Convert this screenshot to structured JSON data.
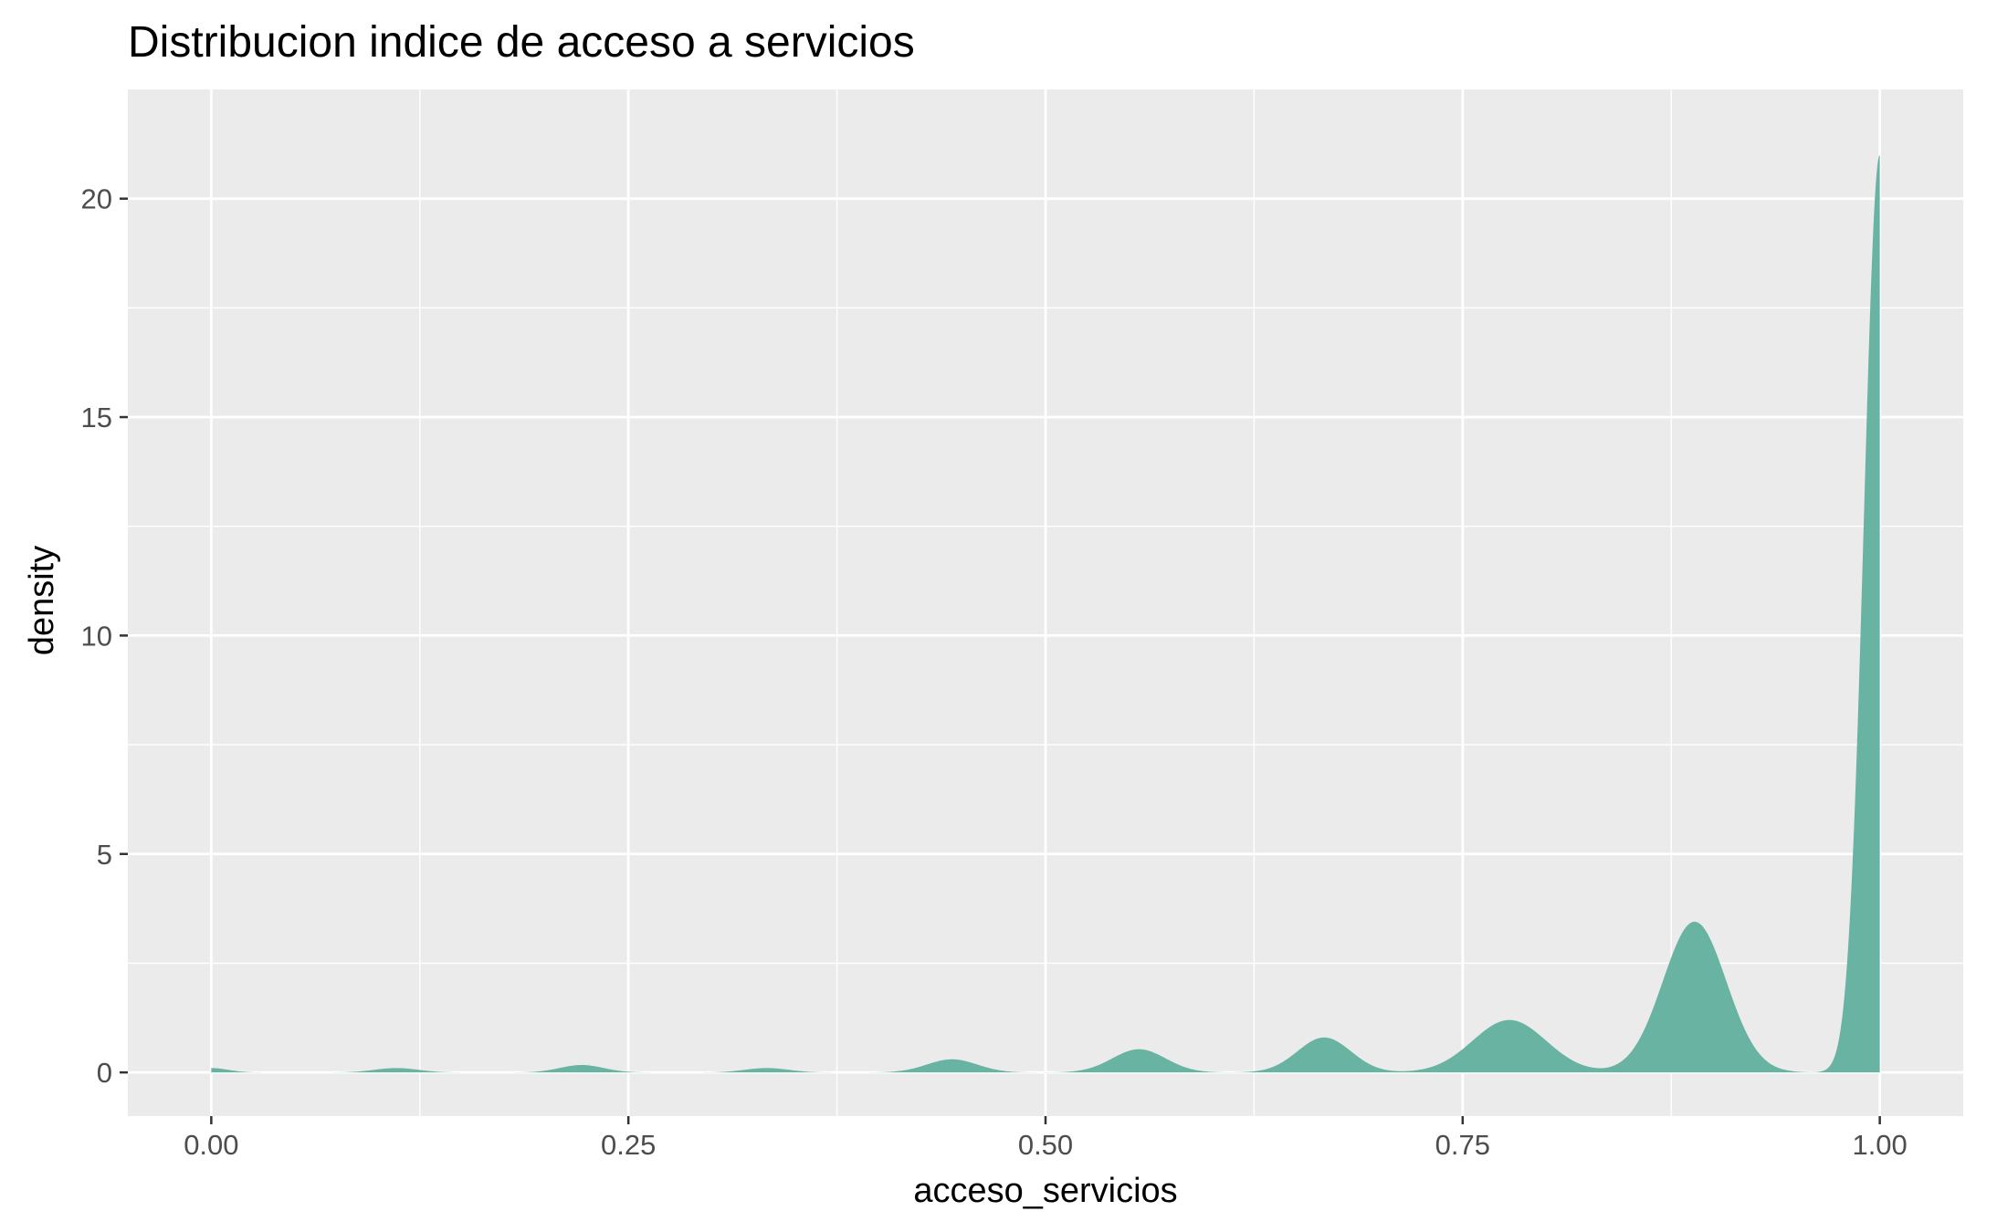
{
  "chart_data": {
    "type": "area",
    "title": "Distribucion indice de acceso a servicios",
    "xlabel": "acceso_servicios",
    "ylabel": "density",
    "xlim": [
      -0.05,
      1.05
    ],
    "ylim": [
      -1.0,
      22.5
    ],
    "x_ticks": [
      0.0,
      0.25,
      0.5,
      0.75,
      1.0
    ],
    "x_tick_labels": [
      "0.00",
      "0.25",
      "0.50",
      "0.75",
      "1.00"
    ],
    "y_ticks": [
      0,
      5,
      10,
      15,
      20
    ],
    "y_tick_labels": [
      "0",
      "5",
      "10",
      "15",
      "20"
    ],
    "grid": true,
    "legend": "none",
    "colors": {
      "fill": "#69b3a2",
      "panel": "#ebebeb",
      "grid": "#ffffff",
      "tick_label": "#4d4d4d",
      "tick": "#333333"
    },
    "peaks": [
      {
        "x": 0.0,
        "density": 0.1
      },
      {
        "x": 0.111,
        "density": 0.1
      },
      {
        "x": 0.222,
        "density": 0.17
      },
      {
        "x": 0.333,
        "density": 0.1
      },
      {
        "x": 0.444,
        "density": 0.3
      },
      {
        "x": 0.556,
        "density": 0.53
      },
      {
        "x": 0.667,
        "density": 0.8
      },
      {
        "x": 0.778,
        "density": 1.2
      },
      {
        "x": 0.889,
        "density": 3.45
      },
      {
        "x": 1.0,
        "density": 21.0
      }
    ]
  }
}
